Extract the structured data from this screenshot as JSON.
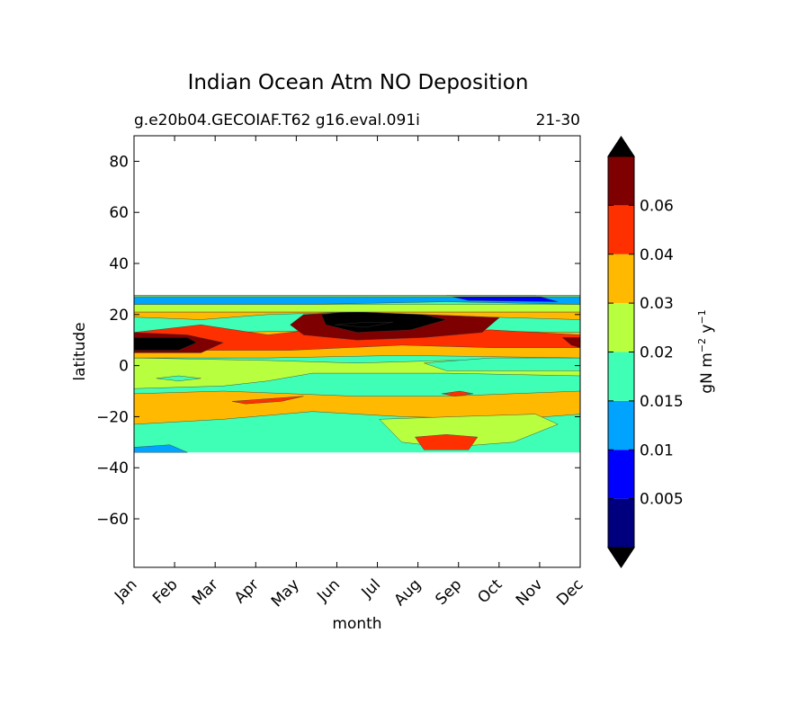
{
  "chart_data": {
    "type": "contourf",
    "title": "Indian Ocean Atm NO Deposition",
    "subtitle_left": "g.e20b04.GECOIAF.T62 g16.eval.091i",
    "subtitle_right": "21-30",
    "xlabel": "month",
    "ylabel": "latitude",
    "x_categories": [
      "Jan",
      "Feb",
      "Mar",
      "Apr",
      "May",
      "Jun",
      "Jul",
      "Aug",
      "Sep",
      "Oct",
      "Nov",
      "Dec"
    ],
    "ylim": [
      -79,
      90
    ],
    "yticks": [
      80,
      60,
      40,
      20,
      0,
      -20,
      -40,
      -60
    ],
    "ytick_labels": [
      "80",
      "60",
      "40",
      "20",
      "0",
      "−20",
      "−40",
      "−60"
    ],
    "data_lat_range": [
      -34,
      27.5
    ],
    "colorbar": {
      "label": "gN m⁻² y⁻¹",
      "label_base": "gN m",
      "label_exp1": "−2",
      "label_mid": " y",
      "label_exp2": "−1",
      "extend": "both",
      "tick_values": [
        0.005,
        0.01,
        0.015,
        0.02,
        0.03,
        0.04,
        0.06
      ],
      "tick_labels": [
        "0.005",
        "0.01",
        "0.015",
        "0.02",
        "0.03",
        "0.04",
        "0.06"
      ],
      "levels": [
        "<0",
        "0-0.005",
        "0.005-0.01",
        "0.01-0.015",
        "0.015-0.02",
        "0.02-0.03",
        "0.03-0.04",
        "0.04-0.06",
        "0.06-0.08",
        ">0.08"
      ],
      "colors": [
        "#000000",
        "#00007f",
        "#0000ff",
        "#00a4ff",
        "#3fffb7",
        "#b7ff3f",
        "#ffb900",
        "#ff3000",
        "#7f0000",
        "#000000"
      ]
    },
    "regions": [
      {
        "name": "south-band",
        "level": 3,
        "lat": [
          -34,
          -18
        ]
      },
      {
        "name": "south-green-band",
        "level": 5,
        "lat": [
          -23,
          -9
        ]
      },
      {
        "name": "equatorial-band",
        "level": 4,
        "lat": [
          -9,
          3
        ]
      },
      {
        "name": "north-green-band",
        "level": 5,
        "lat": [
          3,
          12
        ]
      },
      {
        "name": "north-orange-band",
        "level": 6,
        "lat": [
          6,
          20
        ]
      },
      {
        "name": "jun-aug-red",
        "level": 7,
        "months": [
          4.7,
          8.3
        ],
        "lat": [
          8,
          21
        ]
      },
      {
        "name": "jul-maroon",
        "level": 8,
        "months": [
          5.5,
          7.5
        ],
        "lat": [
          12,
          21
        ]
      },
      {
        "name": "jan-maroon",
        "level": 8,
        "months": [
          0,
          0.9
        ],
        "lat": [
          6,
          11
        ]
      },
      {
        "name": "north-edge-blue",
        "level": 2,
        "lat": [
          21,
          27.5
        ]
      }
    ]
  }
}
